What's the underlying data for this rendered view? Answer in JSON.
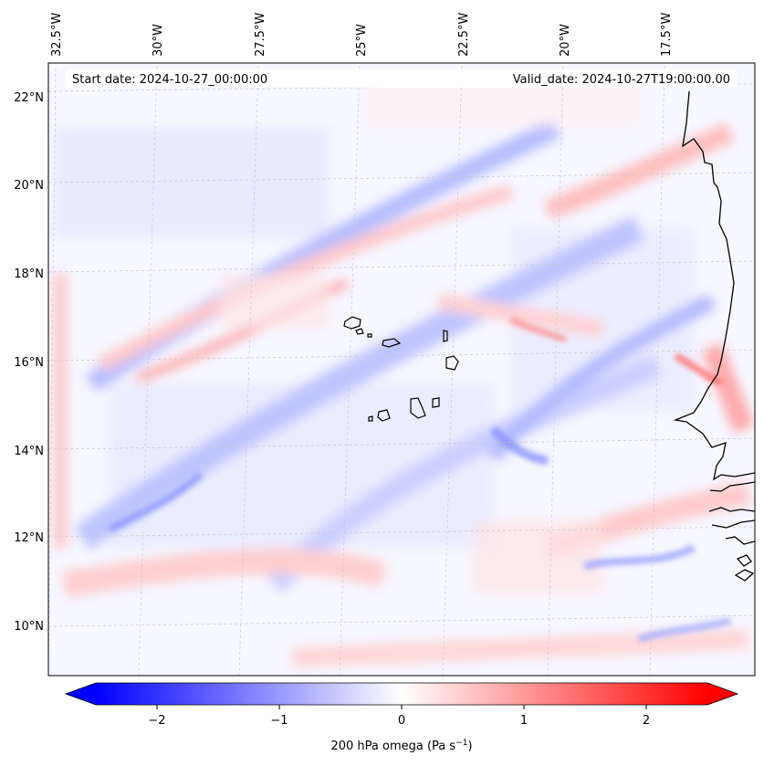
{
  "header": {
    "start_date": "Start date: 2024-10-27_00:00:00",
    "valid_date": "Valid_date: 2024-10-27T19:00:00.00"
  },
  "axes": {
    "lon_labels": [
      "32.5°W",
      "30°W",
      "27.5°W",
      "25°W",
      "22.5°W",
      "20°W",
      "17.5°W"
    ],
    "lat_labels": [
      "22°N",
      "20°N",
      "18°N",
      "16°N",
      "14°N",
      "12°N",
      "10°N"
    ]
  },
  "colorbar": {
    "label": "200 hPa omega (Pa s",
    "label_sup": "−1",
    "label_tail": ")",
    "ticks": [
      "−2",
      "−1",
      "0",
      "1",
      "2"
    ],
    "min_color": "#0000ff",
    "mid_color": "#ffffff",
    "max_color": "#ff0000"
  }
}
